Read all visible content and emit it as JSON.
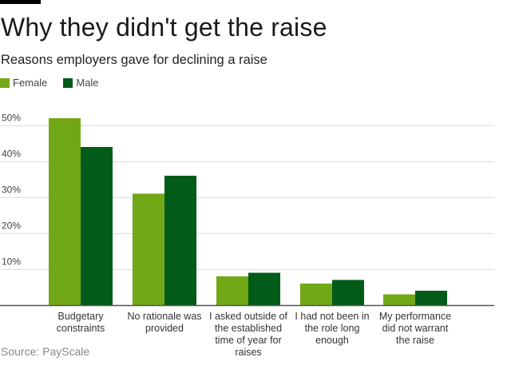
{
  "chart_data": {
    "type": "bar",
    "title": "Why they didn't get the raise",
    "subtitle": "Reasons employers gave for declining a raise",
    "xlabel": "",
    "ylabel": "",
    "categories": [
      [
        "Budgetary",
        "constraints"
      ],
      [
        "No rationale was",
        "provided"
      ],
      [
        "I asked outside of",
        "the established",
        "time of year for",
        "raises"
      ],
      [
        "I had not been in",
        "the role long",
        "enough"
      ],
      [
        "My performance",
        "did not warrant",
        "the raise"
      ]
    ],
    "series": [
      {
        "name": "Female",
        "color": "#72a815",
        "values": [
          52,
          31,
          8,
          6,
          3
        ]
      },
      {
        "name": "Male",
        "color": "#025b18",
        "values": [
          44,
          36,
          9,
          7,
          4
        ]
      }
    ],
    "yticks": [
      {
        "value": 10,
        "label": "10%"
      },
      {
        "value": 20,
        "label": "20%"
      },
      {
        "value": 30,
        "label": "30%"
      },
      {
        "value": 40,
        "label": "40%"
      },
      {
        "value": 50,
        "label": "50%"
      }
    ],
    "ylim": [
      0,
      50
    ],
    "grid": true,
    "legend_position": "top-left",
    "source": "Source: PayScale"
  }
}
